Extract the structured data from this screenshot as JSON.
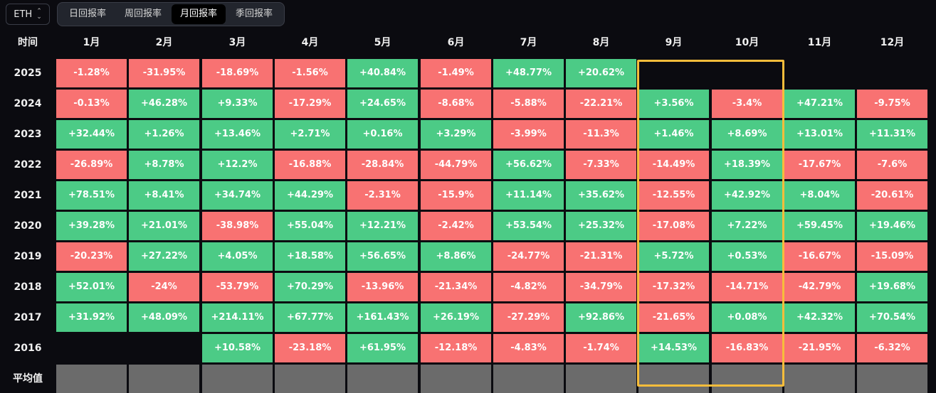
{
  "asset_selector": {
    "value": "ETH"
  },
  "tabs": [
    {
      "label": "日回报率",
      "active": false
    },
    {
      "label": "周回报率",
      "active": false
    },
    {
      "label": "月回报率",
      "active": true
    },
    {
      "label": "季回报率",
      "active": false
    }
  ],
  "table": {
    "corner_label": "时间",
    "months": [
      "1月",
      "2月",
      "3月",
      "4月",
      "5月",
      "6月",
      "7月",
      "8月",
      "9月",
      "10月",
      "11月",
      "12月"
    ],
    "rows": [
      {
        "year": "2025",
        "values": [
          "-1.28%",
          "-31.95%",
          "-18.69%",
          "-1.56%",
          "+40.84%",
          "-1.49%",
          "+48.77%",
          "+20.62%",
          "",
          "",
          "",
          ""
        ]
      },
      {
        "year": "2024",
        "values": [
          "-0.13%",
          "+46.28%",
          "+9.33%",
          "-17.29%",
          "+24.65%",
          "-8.68%",
          "-5.88%",
          "-22.21%",
          "+3.56%",
          "-3.4%",
          "+47.21%",
          "-9.75%"
        ]
      },
      {
        "year": "2023",
        "values": [
          "+32.44%",
          "+1.26%",
          "+13.46%",
          "+2.71%",
          "+0.16%",
          "+3.29%",
          "-3.99%",
          "-11.3%",
          "+1.46%",
          "+8.69%",
          "+13.01%",
          "+11.31%"
        ]
      },
      {
        "year": "2022",
        "values": [
          "-26.89%",
          "+8.78%",
          "+12.2%",
          "-16.88%",
          "-28.84%",
          "-44.79%",
          "+56.62%",
          "-7.33%",
          "-14.49%",
          "+18.39%",
          "-17.67%",
          "-7.6%"
        ]
      },
      {
        "year": "2021",
        "values": [
          "+78.51%",
          "+8.41%",
          "+34.74%",
          "+44.29%",
          "-2.31%",
          "-15.9%",
          "+11.14%",
          "+35.62%",
          "-12.55%",
          "+42.92%",
          "+8.04%",
          "-20.61%"
        ]
      },
      {
        "year": "2020",
        "values": [
          "+39.28%",
          "+21.01%",
          "-38.98%",
          "+55.04%",
          "+12.21%",
          "-2.42%",
          "+53.54%",
          "+25.32%",
          "-17.08%",
          "+7.22%",
          "+59.45%",
          "+19.46%"
        ]
      },
      {
        "year": "2019",
        "values": [
          "-20.23%",
          "+27.22%",
          "+4.05%",
          "+18.58%",
          "+56.65%",
          "+8.86%",
          "-24.77%",
          "-21.31%",
          "+5.72%",
          "+0.53%",
          "-16.67%",
          "-15.09%"
        ]
      },
      {
        "year": "2018",
        "values": [
          "+52.01%",
          "-24%",
          "-53.79%",
          "+70.29%",
          "-13.96%",
          "-21.34%",
          "-4.82%",
          "-34.79%",
          "-17.32%",
          "-14.71%",
          "-42.79%",
          "+19.68%"
        ]
      },
      {
        "year": "2017",
        "values": [
          "+31.92%",
          "+48.09%",
          "+214.11%",
          "+67.77%",
          "+161.43%",
          "+26.19%",
          "-27.29%",
          "+92.86%",
          "-21.65%",
          "+0.08%",
          "+42.32%",
          "+70.54%"
        ]
      },
      {
        "year": "2016",
        "values": [
          "",
          "",
          "+10.58%",
          "-23.18%",
          "+61.95%",
          "-12.18%",
          "-4.83%",
          "-1.74%",
          "+14.53%",
          "-16.83%",
          "-21.95%",
          "-6.32%"
        ]
      }
    ],
    "average_row": {
      "label": "平均值"
    },
    "highlight_month": "9月",
    "colors": {
      "positive": "#4ccb86",
      "negative": "#f87272",
      "average": "#6b6b6b",
      "highlight": "#f7bd3b"
    }
  }
}
